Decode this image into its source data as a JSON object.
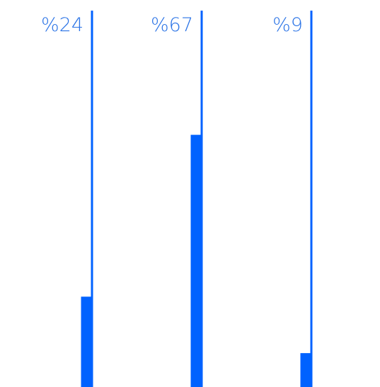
{
  "chart_data": {
    "type": "bar",
    "categories": [
      "%24",
      "%67",
      "%9"
    ],
    "values": [
      24,
      67,
      9
    ],
    "data_labels": [
      "%24",
      "%67",
      "%9"
    ],
    "ylim": [
      0,
      100
    ],
    "grid": false,
    "legend": "none"
  },
  "colors": {
    "bar": "#0062ff",
    "label": "#2a73e6",
    "background": "#ffffff"
  }
}
